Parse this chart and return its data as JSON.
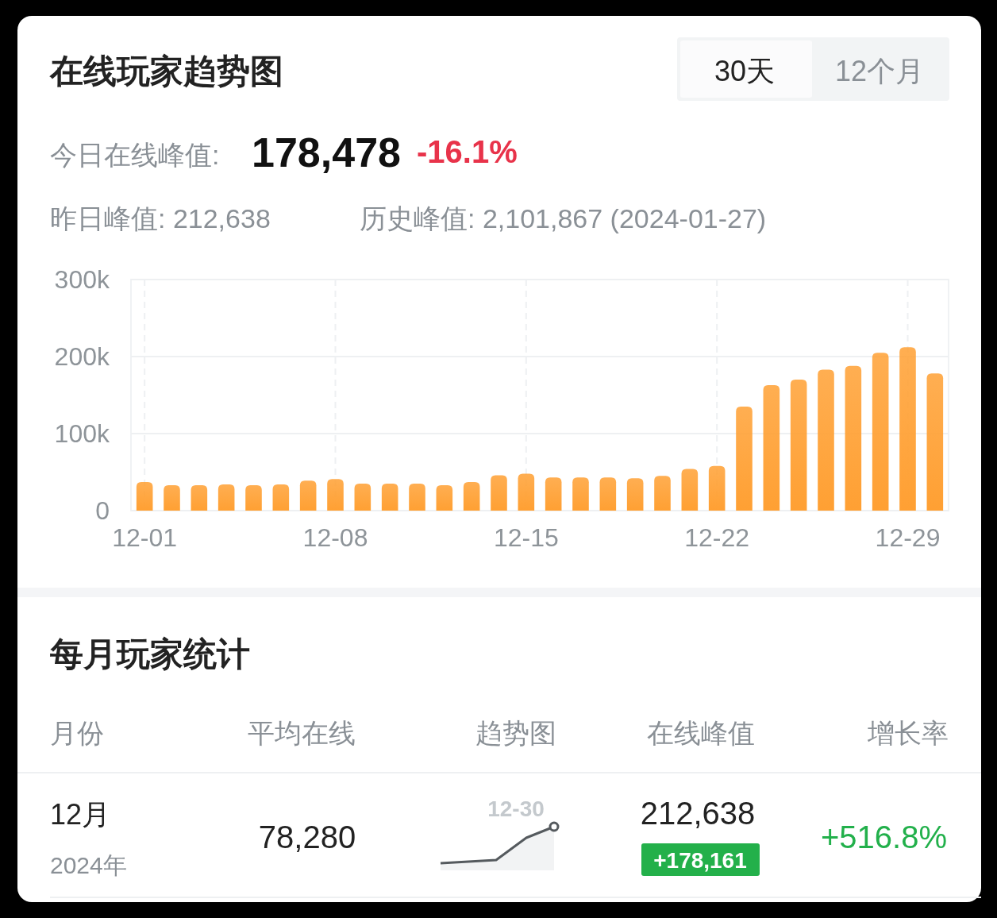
{
  "chart_data": {
    "type": "bar",
    "title": "在线玩家趋势图",
    "categories": [
      "12-01",
      null,
      null,
      null,
      null,
      null,
      null,
      "12-08",
      null,
      null,
      null,
      null,
      null,
      null,
      "12-15",
      null,
      null,
      null,
      null,
      null,
      null,
      "12-22",
      null,
      null,
      null,
      null,
      null,
      null,
      "12-29",
      null
    ],
    "values": [
      37000,
      33000,
      33000,
      34000,
      33000,
      34000,
      39000,
      41000,
      35000,
      35000,
      35000,
      33000,
      37000,
      46000,
      48000,
      43000,
      43000,
      43000,
      42000,
      45000,
      54000,
      58000,
      135000,
      163000,
      170000,
      183000,
      188000,
      205000,
      212000,
      178000
    ],
    "color": "#ffa033",
    "ylim": [
      0,
      300000
    ],
    "yticks": [
      {
        "value": 0,
        "label": "0"
      },
      {
        "value": 100000,
        "label": "100k"
      },
      {
        "value": 200000,
        "label": "200k"
      },
      {
        "value": 300000,
        "label": "300k"
      }
    ],
    "grid": true,
    "annotations": [
      "30天",
      "12个月",
      "今日在线峰值:",
      "178,478",
      "-16.1%",
      "昨日峰值: 212,638",
      "历史峰值: 2,101,867 (2024-01-27)",
      "每月玩家统计",
      "月份",
      "平均在线",
      "趋势图",
      "在线峰值",
      "增长率",
      "12月",
      "2024年",
      "78,280",
      "12-30",
      "212,638",
      "+178,161",
      "+516.8%"
    ]
  }
}
